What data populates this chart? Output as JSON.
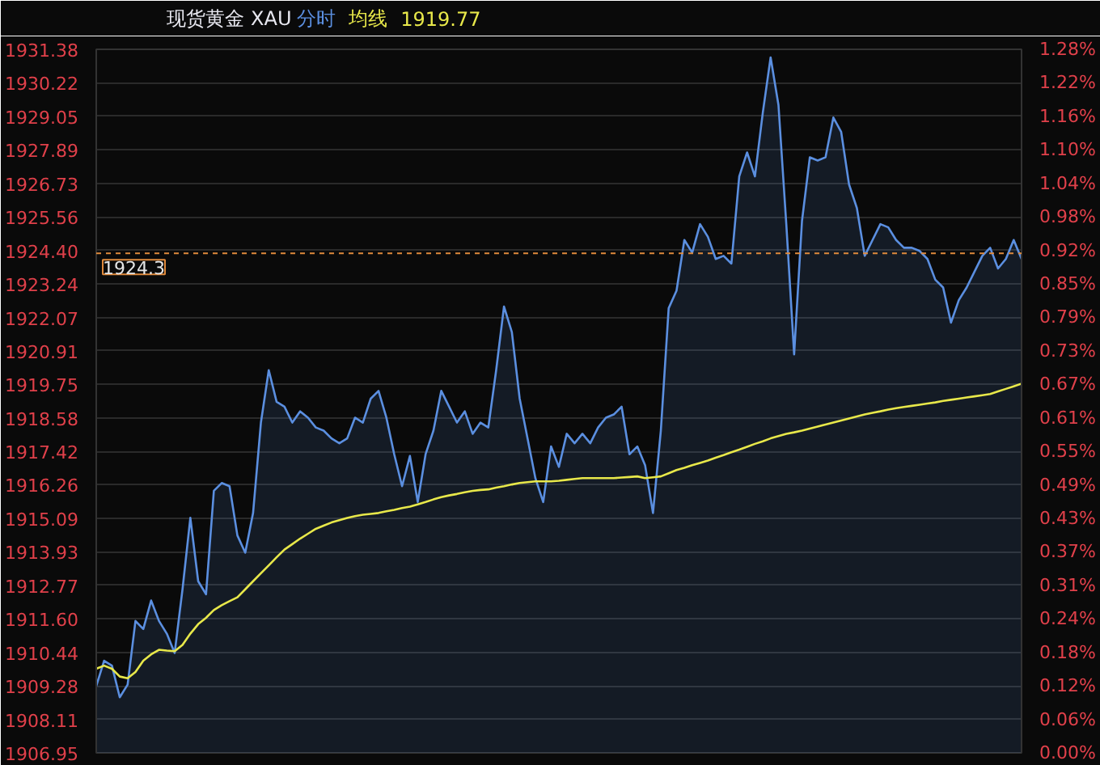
{
  "chart_data": {
    "type": "area",
    "title": "现货黄金 XAU",
    "annotations": [
      "1919.77"
    ],
    "tick_labels": "y",
    "grid": "y",
    "categories": [
      null,
      null,
      null,
      null,
      null,
      null,
      null,
      null,
      null,
      null,
      null,
      null,
      null,
      null,
      null,
      null,
      null,
      null,
      null,
      null,
      null,
      null,
      null,
      null,
      null,
      null,
      null,
      null,
      null,
      null,
      null,
      null,
      null,
      null,
      null,
      null,
      null,
      null,
      null,
      null,
      null,
      null,
      null,
      null,
      null,
      null,
      null,
      null,
      null,
      null,
      null,
      null,
      null,
      null,
      null,
      null,
      null,
      null,
      null,
      null,
      null,
      null,
      null,
      null,
      null,
      null,
      null,
      null,
      null,
      null,
      null,
      null,
      null,
      null,
      null,
      null,
      null,
      null,
      null,
      null,
      null,
      null,
      null,
      null,
      null,
      null,
      null,
      null,
      null,
      null,
      null,
      null,
      null,
      null,
      null,
      null,
      null,
      null,
      null,
      null,
      null,
      null,
      null,
      null,
      null,
      null,
      null,
      null,
      null,
      null,
      null,
      null,
      null,
      null,
      null,
      null,
      null,
      null,
      null
    ],
    "ylim": [
      1906.95,
      1931.38
    ],
    "yticks": [
      1906.95,
      1908.11,
      1909.28,
      1910.44,
      {
        "value": 1911.6,
        "label": "1911.60"
      },
      1912.77,
      1913.93,
      1915.09,
      1916.26,
      1917.42,
      1918.58,
      1919.75,
      1920.91,
      1922.07,
      1923.24,
      {
        "value": 1924.4,
        "label": "1924.40"
      },
      1925.56,
      1926.73,
      1927.89,
      1929.05,
      1930.22,
      1931.38
    ],
    "y2lim": [
      0,
      1.281
    ],
    "y2ticks": [
      {
        "value": 0,
        "label": "0.00%"
      },
      {
        "value": 0.061,
        "label": "0.06%"
      },
      {
        "value": 0.122,
        "label": "0.12%"
      },
      {
        "value": 0.183,
        "label": "0.18%"
      },
      {
        "value": 0.244,
        "label": "0.24%"
      },
      {
        "value": 0.305,
        "label": "0.31%"
      },
      {
        "value": 0.366,
        "label": "0.37%"
      },
      {
        "value": 0.427,
        "label": "0.43%"
      },
      {
        "value": 0.488,
        "label": "0.49%"
      },
      {
        "value": 0.549,
        "label": "0.55%"
      },
      {
        "value": 0.61,
        "label": "0.61%"
      },
      {
        "value": 0.671,
        "label": "0.67%"
      },
      {
        "value": 0.732,
        "label": "0.73%"
      },
      {
        "value": 0.793,
        "label": "0.79%"
      },
      {
        "value": 0.854,
        "label": "0.85%"
      },
      {
        "value": 0.915,
        "label": "0.92%"
      },
      {
        "value": 0.976,
        "label": "0.98%"
      },
      {
        "value": 1.037,
        "label": "1.04%"
      },
      {
        "value": 1.098,
        "label": "1.10%"
      },
      {
        "value": 1.159,
        "label": "1.16%"
      },
      {
        "value": 1.22,
        "label": "1.22%"
      },
      {
        "value": 1.281,
        "label": "1.28%"
      }
    ],
    "ref_lines": [
      {
        "axis": "y",
        "value": 1924.3,
        "label": "1924.3",
        "color": "#e08a3c",
        "line_style": "dashed"
      }
    ],
    "series": [
      {
        "name": "分时",
        "color": "#5b8fe0",
        "values": [
          1909.27,
          1910.15,
          1909.98,
          1908.88,
          1909.32,
          1911.53,
          1911.25,
          1912.24,
          1911.53,
          1911.09,
          1910.42,
          1912.63,
          1915.11,
          1912.91,
          1912.46,
          1916.05,
          1916.32,
          1916.21,
          1914.5,
          1913.9,
          1915.28,
          1918.42,
          1920.24,
          1919.14,
          1918.97,
          1918.42,
          1918.81,
          1918.59,
          1918.25,
          1918.14,
          1917.87,
          1917.7,
          1917.87,
          1918.59,
          1918.42,
          1919.25,
          1919.52,
          1918.59,
          1917.32,
          1916.21,
          1917.26,
          1915.66,
          1917.32,
          1918.14,
          1919.52,
          1918.97,
          1918.42,
          1918.81,
          1918.03,
          1918.42,
          1918.25,
          1920.24,
          1922.45,
          1921.56,
          1919.25,
          1917.87,
          1916.49,
          1915.66,
          1917.59,
          1916.88,
          1918.03,
          1917.7,
          1918.03,
          1917.7,
          1918.25,
          1918.59,
          1918.7,
          1918.97,
          1917.32,
          1917.59,
          1916.93,
          1915.28,
          1918.14,
          1922.39,
          1923.0,
          1924.76,
          1924.32,
          1925.31,
          1924.87,
          1924.1,
          1924.21,
          1923.94,
          1926.97,
          1927.8,
          1926.97,
          1929.17,
          1931.1,
          1929.45,
          1925.31,
          1920.79,
          1925.42,
          1927.63,
          1927.52,
          1927.63,
          1929.01,
          1928.51,
          1926.69,
          1925.87,
          1924.21,
          1924.76,
          1925.31,
          1925.2,
          1924.76,
          1924.49,
          1924.49,
          1924.38,
          1924.1,
          1923.38,
          1923.11,
          1921.89,
          1922.67,
          1923.11,
          1923.66,
          1924.21,
          1924.49,
          1923.77,
          1924.1,
          1924.76,
          1924.1
        ]
      },
      {
        "name": "均线",
        "type": "line",
        "color": "#e8e84a",
        "values": [
          1909.87,
          1909.98,
          1909.87,
          1909.6,
          1909.54,
          1909.76,
          1910.15,
          1910.37,
          1910.53,
          1910.5,
          1910.48,
          1910.7,
          1911.09,
          1911.42,
          1911.64,
          1911.91,
          1912.08,
          1912.22,
          1912.35,
          1912.63,
          1912.91,
          1913.19,
          1913.46,
          1913.74,
          1914.01,
          1914.2,
          1914.39,
          1914.56,
          1914.73,
          1914.84,
          1914.95,
          1915.03,
          1915.11,
          1915.17,
          1915.22,
          1915.25,
          1915.28,
          1915.34,
          1915.39,
          1915.45,
          1915.5,
          1915.58,
          1915.66,
          1915.75,
          1915.83,
          1915.89,
          1915.94,
          1916.0,
          1916.05,
          1916.08,
          1916.1,
          1916.16,
          1916.21,
          1916.27,
          1916.32,
          1916.35,
          1916.38,
          1916.38,
          1916.38,
          1916.4,
          1916.43,
          1916.46,
          1916.49,
          1916.49,
          1916.49,
          1916.49,
          1916.49,
          1916.51,
          1916.53,
          1916.55,
          1916.49,
          1916.52,
          1916.55,
          1916.66,
          1916.77,
          1916.85,
          1916.94,
          1917.02,
          1917.1,
          1917.2,
          1917.29,
          1917.39,
          1917.48,
          1917.58,
          1917.68,
          1917.77,
          1917.87,
          1917.95,
          1918.03,
          1918.08,
          1918.14,
          1918.21,
          1918.28,
          1918.35,
          1918.42,
          1918.49,
          1918.56,
          1918.63,
          1918.7,
          1918.76,
          1918.81,
          1918.87,
          1918.92,
          1918.96,
          1919.0,
          1919.04,
          1919.08,
          1919.12,
          1919.17,
          1919.21,
          1919.25,
          1919.29,
          1919.33,
          1919.37,
          1919.41,
          1919.5,
          1919.59,
          1919.68,
          1919.77
        ]
      }
    ]
  }
}
